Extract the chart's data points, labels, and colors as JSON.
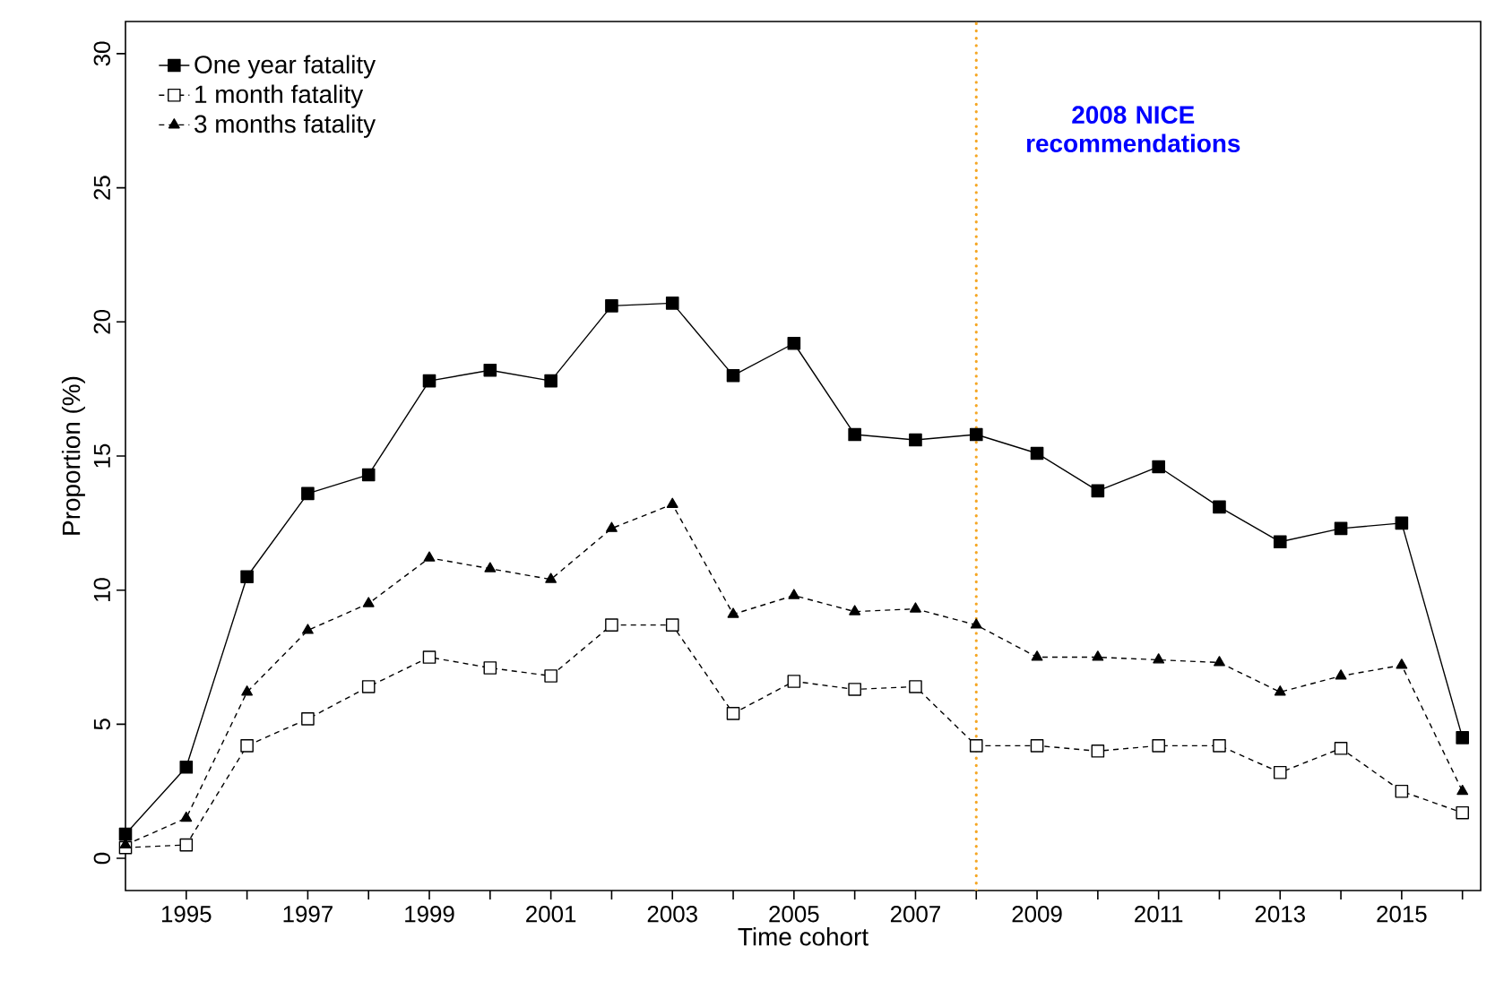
{
  "chart_data": {
    "type": "line",
    "xlabel": "Time cohort",
    "ylabel": "Proportion (%)",
    "x": [
      1994,
      1995,
      1996,
      1997,
      1998,
      1999,
      2000,
      2001,
      2002,
      2003,
      2004,
      2005,
      2006,
      2007,
      2008,
      2009,
      2010,
      2011,
      2012,
      2013,
      2014,
      2015,
      2016
    ],
    "series": [
      {
        "name": "One year fatality",
        "color": "#000000",
        "marker": "square",
        "line_style": "solid",
        "values": [
          0.9,
          3.4,
          10.5,
          13.6,
          14.3,
          17.8,
          18.2,
          17.8,
          20.6,
          20.7,
          18.0,
          19.2,
          15.8,
          15.6,
          15.8,
          15.1,
          13.7,
          14.6,
          13.1,
          11.8,
          12.3,
          12.5,
          4.5
        ]
      },
      {
        "name": "1 month fatality",
        "color": "#000000",
        "marker": "square-open",
        "line_style": "dashed",
        "values": [
          0.4,
          0.5,
          4.2,
          5.2,
          6.4,
          7.5,
          7.1,
          6.8,
          8.7,
          8.7,
          5.4,
          6.6,
          6.3,
          6.4,
          4.2,
          4.2,
          4.0,
          4.2,
          4.2,
          3.2,
          4.1,
          2.5,
          1.7
        ]
      },
      {
        "name": "3 months fatality",
        "color": "#000000",
        "marker": "triangle",
        "line_style": "dashed",
        "values": [
          0.5,
          1.5,
          6.2,
          8.5,
          9.5,
          11.2,
          10.8,
          10.4,
          12.3,
          13.2,
          9.1,
          9.8,
          9.2,
          9.3,
          8.7,
          7.5,
          7.5,
          7.4,
          7.3,
          6.2,
          6.8,
          7.2,
          2.5
        ]
      }
    ],
    "xlim": [
      1994,
      2016.3
    ],
    "ylim": [
      -1.2,
      31.2
    ],
    "xticks": [
      1995,
      {
        "value": 1996,
        "label": null
      },
      1997,
      {
        "value": 1998,
        "label": null
      },
      1999,
      {
        "value": 2000,
        "label": null
      },
      2001,
      {
        "value": 2002,
        "label": null
      },
      2003,
      {
        "value": 2004,
        "label": null
      },
      2005,
      {
        "value": 2006,
        "label": null
      },
      2007,
      {
        "value": 2008,
        "label": null
      },
      2009,
      {
        "value": 2010,
        "label": null
      },
      2011,
      {
        "value": 2012,
        "label": null
      },
      2013,
      {
        "value": 2014,
        "label": null
      },
      2015,
      {
        "value": 2016,
        "label": null
      }
    ],
    "yticks": [
      0,
      5,
      10,
      15,
      20,
      25,
      30
    ],
    "ref_lines": [
      {
        "axis": "x",
        "value": 2008,
        "color": "#f5a623",
        "line_style": "dotted",
        "label": "2008 NICE recommendations"
      }
    ],
    "legend": "top left",
    "grid": false
  }
}
